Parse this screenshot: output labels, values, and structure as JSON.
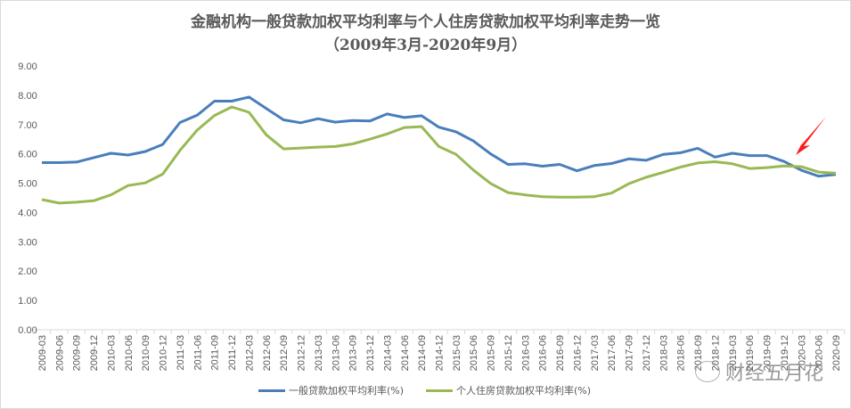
{
  "chart_data": {
    "type": "line",
    "title": "金融机构一般贷款加权平均利率与个人住房贷款加权平均利率走势一览",
    "subtitle": "（2009年3月-2020年9月）",
    "xlabel": "",
    "ylabel": "",
    "ylim": [
      0,
      9
    ],
    "yticks": [
      "0.00",
      "1.00",
      "2.00",
      "3.00",
      "4.00",
      "5.00",
      "6.00",
      "7.00",
      "8.00",
      "9.00"
    ],
    "grid": false,
    "legend_placement": "bottom",
    "x": [
      "2009-03",
      "2009-06",
      "2009-09",
      "2009-12",
      "2010-03",
      "2010-06",
      "2010-09",
      "2010-12",
      "2011-03",
      "2011-06",
      "2011-09",
      "2011-12",
      "2012-03",
      "2012-06",
      "2012-09",
      "2012-12",
      "2013-03",
      "2013-06",
      "2013-09",
      "2013-12",
      "2014-03",
      "2014-06",
      "2014-09",
      "2014-12",
      "2015-03",
      "2015-06",
      "2015-09",
      "2015-12",
      "2016-03",
      "2016-06",
      "2016-09",
      "2016-12",
      "2017-03",
      "2017-06",
      "2017-09",
      "2017-12",
      "2018-03",
      "2018-06",
      "2018-09",
      "2018-12",
      "2019-03",
      "2019-06",
      "2019-09",
      "2019-12",
      "2020-03",
      "2020-06",
      "2020-09"
    ],
    "series": [
      {
        "name": "一般贷款加权平均利率(%)",
        "color": "#4a7ebb",
        "values": [
          5.7,
          5.7,
          5.72,
          5.87,
          6.02,
          5.96,
          6.08,
          6.32,
          7.07,
          7.32,
          7.8,
          7.8,
          7.94,
          7.55,
          7.16,
          7.06,
          7.2,
          7.08,
          7.14,
          7.12,
          7.36,
          7.24,
          7.3,
          6.91,
          6.75,
          6.44,
          6.0,
          5.64,
          5.66,
          5.58,
          5.64,
          5.42,
          5.6,
          5.67,
          5.83,
          5.78,
          5.98,
          6.04,
          6.19,
          5.89,
          6.02,
          5.94,
          5.94,
          5.74,
          5.44,
          5.24,
          5.3
        ]
      },
      {
        "name": "个人住房贷款加权平均利率(%)",
        "color": "#98b954",
        "values": [
          4.44,
          4.32,
          4.35,
          4.4,
          4.6,
          4.92,
          5.01,
          5.31,
          6.12,
          6.81,
          7.31,
          7.6,
          7.42,
          6.65,
          6.17,
          6.2,
          6.23,
          6.25,
          6.34,
          6.5,
          6.68,
          6.9,
          6.93,
          6.25,
          5.98,
          5.45,
          4.99,
          4.68,
          4.6,
          4.54,
          4.52,
          4.52,
          4.54,
          4.66,
          4.98,
          5.2,
          5.37,
          5.55,
          5.69,
          5.73,
          5.66,
          5.5,
          5.53,
          5.59,
          5.56,
          5.38,
          5.34
        ]
      }
    ],
    "annotations": [
      {
        "type": "arrow",
        "color": "#ff0000",
        "points_to": "2020-03"
      }
    ]
  },
  "watermark": "财经五月花"
}
